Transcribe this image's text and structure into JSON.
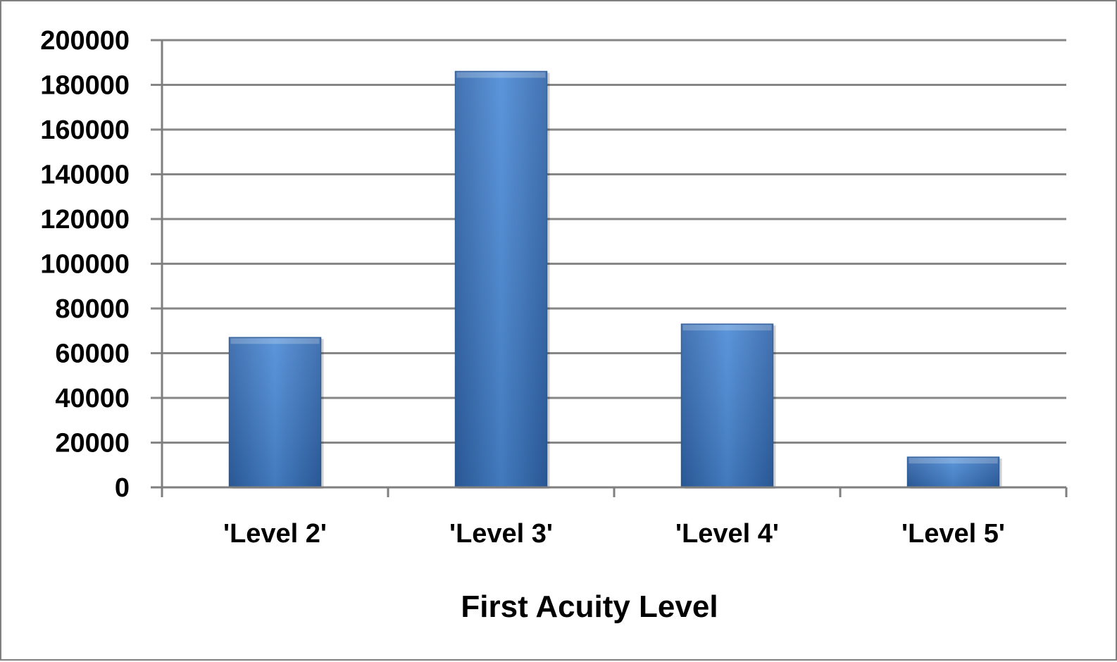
{
  "chart_data": {
    "type": "bar",
    "categories": [
      "'Level 2'",
      "'Level 3'",
      "'Level 4'",
      "'Level 5'"
    ],
    "values": [
      67000,
      186000,
      73000,
      13500
    ],
    "title": "",
    "xlabel": "First Acuity Level",
    "ylabel": "",
    "ylim": [
      0,
      200000
    ],
    "yticks": [
      0,
      20000,
      40000,
      60000,
      80000,
      100000,
      120000,
      140000,
      160000,
      180000,
      200000
    ],
    "grid": true,
    "legend": "none",
    "colors": {
      "bar_light": "#4a8ad6",
      "bar_dark": "#2f63a8",
      "bar_edge": "#2a5a98",
      "grid": "#868686",
      "axis": "#7f7f7f"
    }
  }
}
